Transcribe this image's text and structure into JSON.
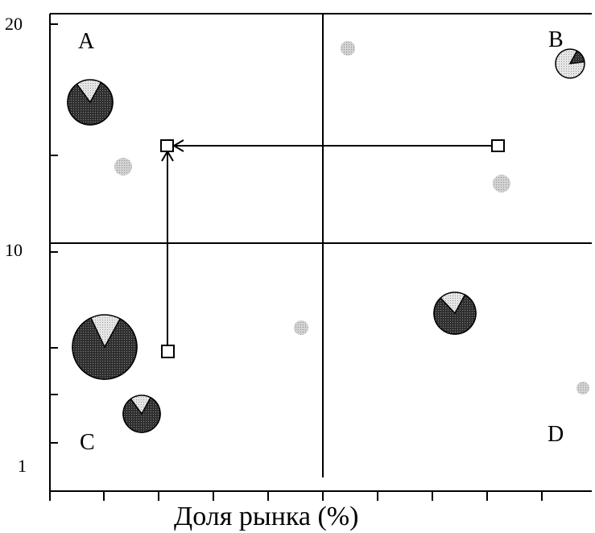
{
  "diagram": {
    "x_axis_label": "Доля рынка (%)",
    "y_ticks": {
      "top": "20",
      "middle": "10",
      "bottom": "1"
    },
    "quadrants": {
      "top_left": "A",
      "top_right": "B",
      "bottom_left": "C",
      "bottom_right": "D"
    },
    "colors": {
      "ink": "#000000",
      "dark_fill": "#3a3a3a",
      "light_fill": "#d8d8d8",
      "ghost_fill": "#bdbdbd",
      "background": "#ffffff"
    },
    "pie_charts": [
      {
        "id": "a-large",
        "share": 0.82
      },
      {
        "id": "b-small",
        "share": 0.15
      },
      {
        "id": "c-largest",
        "share": 0.85
      },
      {
        "id": "c-small",
        "share": 0.82
      },
      {
        "id": "d-medium",
        "share": 0.8
      }
    ],
    "icons": {
      "start_marker": "square-marker",
      "waypoint_marker": "square-marker",
      "end_marker": "square-marker",
      "arrow_head": "arrowhead-icon"
    }
  }
}
